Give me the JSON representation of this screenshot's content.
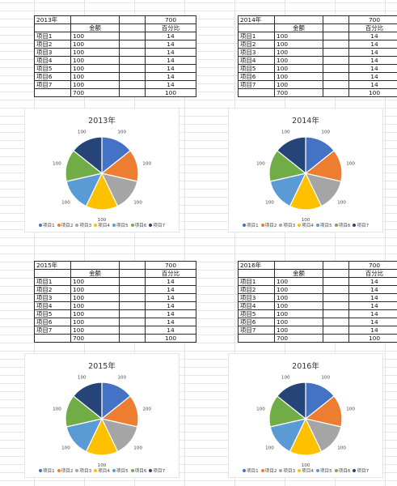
{
  "sheet": {
    "header_amount": "金额",
    "header_percent": "百分比",
    "items": [
      "项目1",
      "项目2",
      "项目3",
      "项目4",
      "项目5",
      "项目6",
      "项目7"
    ],
    "blocks": [
      {
        "year": "2013年",
        "top_total": "700",
        "amounts": [
          "100",
          "100",
          "100",
          "100",
          "100",
          "100",
          "100"
        ],
        "percents": [
          "14",
          "14",
          "14",
          "14",
          "14",
          "14",
          "14"
        ],
        "sum_amount": "700",
        "sum_percent": "100"
      },
      {
        "year": "2014年",
        "top_total": "700",
        "amounts": [
          "100",
          "100",
          "100",
          "100",
          "100",
          "100",
          "100"
        ],
        "percents": [
          "14",
          "14",
          "14",
          "14",
          "14",
          "14",
          "14"
        ],
        "sum_amount": "700",
        "sum_percent": "100"
      },
      {
        "year": "2015年",
        "top_total": "700",
        "amounts": [
          "100",
          "100",
          "100",
          "100",
          "100",
          "100",
          "100"
        ],
        "percents": [
          "14",
          "14",
          "14",
          "14",
          "14",
          "14",
          "14"
        ],
        "sum_amount": "700",
        "sum_percent": "100"
      },
      {
        "year": "2016年",
        "top_total": "700",
        "amounts": [
          "100",
          "100",
          "100",
          "100",
          "100",
          "100",
          "100"
        ],
        "percents": [
          "14",
          "14",
          "14",
          "14",
          "14",
          "14",
          "14"
        ],
        "sum_amount": "700",
        "sum_percent": "100"
      }
    ]
  },
  "colors": [
    "#4472C4",
    "#ED7D31",
    "#A5A5A5",
    "#FFC000",
    "#5B9BD5",
    "#70AD47",
    "#264478"
  ],
  "chart_data": [
    {
      "type": "pie",
      "title": "2013年",
      "categories": [
        "项目1",
        "项目2",
        "项目3",
        "项目4",
        "项目5",
        "项目6",
        "项目7"
      ],
      "values": [
        100,
        100,
        100,
        100,
        100,
        100,
        100
      ],
      "data_labels": [
        "100",
        "100",
        "100",
        "100",
        "100",
        "100",
        "100"
      ],
      "legend": "bottom"
    },
    {
      "type": "pie",
      "title": "2014年",
      "categories": [
        "项目1",
        "项目2",
        "项目3",
        "项目4",
        "项目5",
        "项目6",
        "项目7"
      ],
      "values": [
        100,
        100,
        100,
        100,
        100,
        100,
        100
      ],
      "data_labels": [
        "100",
        "100",
        "100",
        "100",
        "100",
        "100",
        "100"
      ],
      "legend": "bottom"
    },
    {
      "type": "pie",
      "title": "2015年",
      "categories": [
        "项目1",
        "项目2",
        "项目3",
        "项目4",
        "项目5",
        "项目6",
        "项目7"
      ],
      "values": [
        100,
        100,
        100,
        100,
        100,
        100,
        100
      ],
      "data_labels": [
        "100",
        "100",
        "100",
        "100",
        "100",
        "100",
        "100"
      ],
      "legend": "bottom"
    },
    {
      "type": "pie",
      "title": "2016年",
      "categories": [
        "项目1",
        "项目2",
        "项目3",
        "项目4",
        "项目5",
        "项目6",
        "项目7"
      ],
      "values": [
        100,
        100,
        100,
        100,
        100,
        100,
        100
      ],
      "data_labels": [
        "100",
        "100",
        "100",
        "100",
        "100",
        "100",
        "100"
      ],
      "legend": "bottom"
    }
  ]
}
